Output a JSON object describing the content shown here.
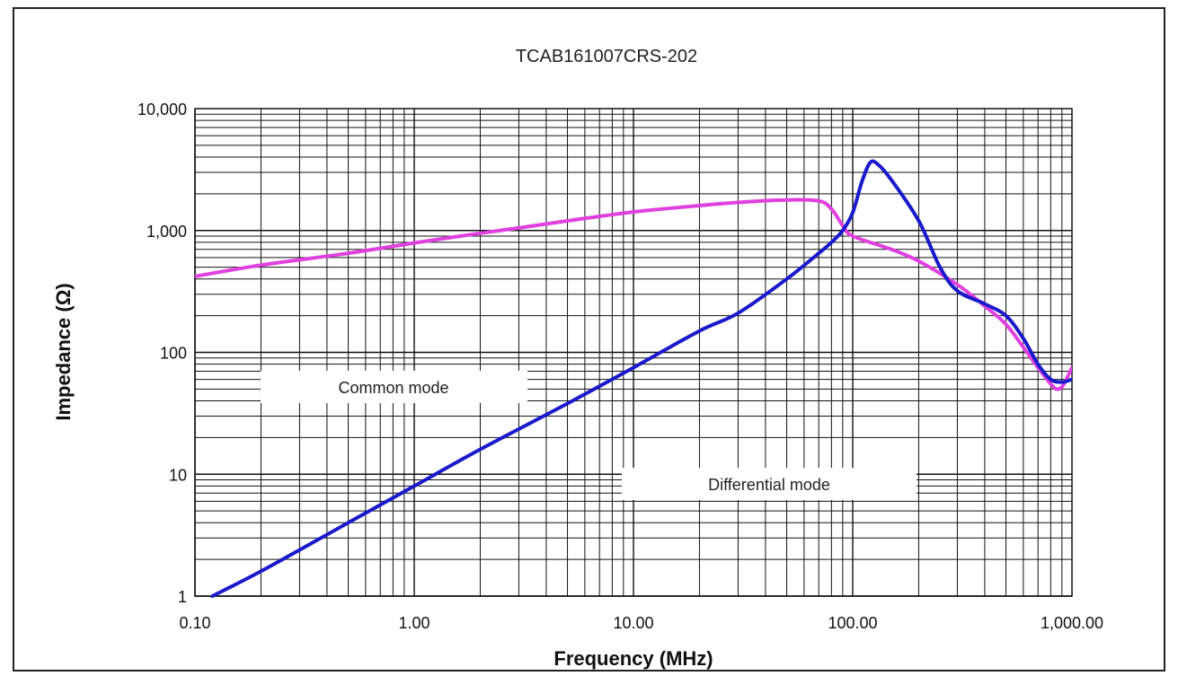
{
  "chart_data": {
    "type": "line",
    "title": "TCAB161007CRS-202",
    "xlabel": "Frequency (MHz)",
    "ylabel": "Impedance (Ω)",
    "xscale": "log",
    "yscale": "log",
    "xlim": [
      0.1,
      1000
    ],
    "ylim": [
      1,
      10000
    ],
    "grid": true,
    "x_tick_labels": [
      "0.10",
      "1.00",
      "10.00",
      "100.00",
      "1,000.00"
    ],
    "y_tick_labels": [
      "1",
      "10",
      "100",
      "1,000",
      "10,000"
    ],
    "series": [
      {
        "name": "Common mode",
        "color": "#e040e0",
        "points": [
          [
            0.1,
            420
          ],
          [
            0.2,
            520
          ],
          [
            0.5,
            650
          ],
          [
            1,
            790
          ],
          [
            2,
            950
          ],
          [
            3,
            1050
          ],
          [
            5,
            1200
          ],
          [
            10,
            1420
          ],
          [
            20,
            1600
          ],
          [
            30,
            1700
          ],
          [
            50,
            1780
          ],
          [
            70,
            1750
          ],
          [
            80,
            1500
          ],
          [
            90,
            1100
          ],
          [
            100,
            900
          ],
          [
            150,
            700
          ],
          [
            200,
            560
          ],
          [
            300,
            360
          ],
          [
            400,
            240
          ],
          [
            500,
            170
          ],
          [
            600,
            110
          ],
          [
            700,
            75
          ],
          [
            800,
            55
          ],
          [
            850,
            50
          ],
          [
            900,
            52
          ],
          [
            950,
            62
          ],
          [
            1000,
            75
          ]
        ]
      },
      {
        "name": "Differential mode",
        "color": "#1a1acc",
        "points": [
          [
            0.12,
            1
          ],
          [
            0.2,
            1.6
          ],
          [
            0.5,
            4
          ],
          [
            1,
            8
          ],
          [
            2,
            16
          ],
          [
            5,
            38
          ],
          [
            10,
            75
          ],
          [
            20,
            150
          ],
          [
            30,
            210
          ],
          [
            50,
            400
          ],
          [
            70,
            650
          ],
          [
            80,
            800
          ],
          [
            90,
            1000
          ],
          [
            100,
            1400
          ],
          [
            110,
            2500
          ],
          [
            120,
            3600
          ],
          [
            130,
            3500
          ],
          [
            150,
            2600
          ],
          [
            200,
            1200
          ],
          [
            250,
            500
          ],
          [
            300,
            320
          ],
          [
            400,
            250
          ],
          [
            500,
            200
          ],
          [
            600,
            130
          ],
          [
            700,
            80
          ],
          [
            800,
            60
          ],
          [
            900,
            57
          ],
          [
            1000,
            60
          ]
        ]
      }
    ],
    "labels": [
      "Common mode",
      "Differential mode"
    ]
  },
  "colors": {
    "grid": "#111111",
    "frame": "#222222",
    "common_mode": "#e040e0",
    "differential_mode": "#1a1acc"
  }
}
